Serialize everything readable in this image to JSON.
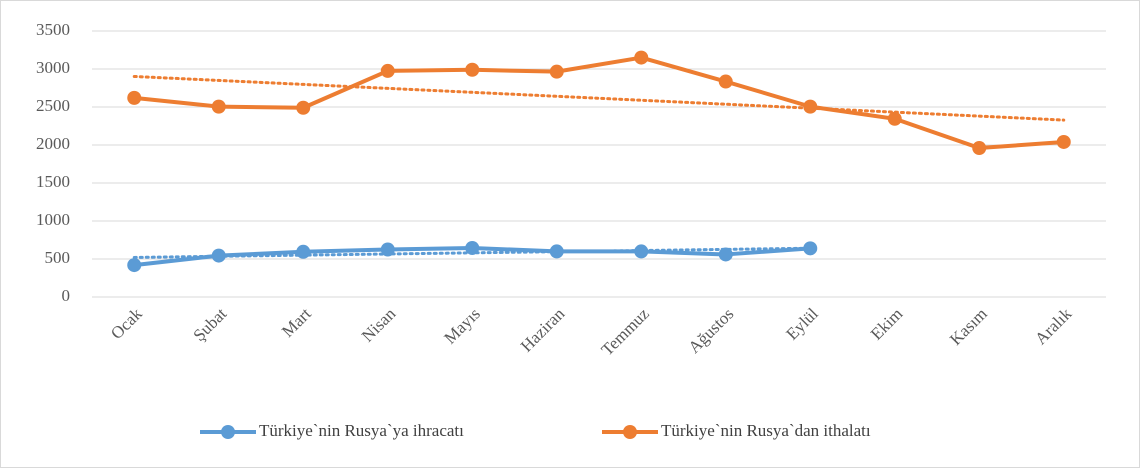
{
  "chart_data": {
    "type": "line",
    "categories": [
      "Ocak",
      "Şubat",
      "Mart",
      "Nisan",
      "Mayıs",
      "Haziran",
      "Temmuz",
      "Ağustos",
      "Eylül",
      "Ekim",
      "Kasım",
      "Aralık"
    ],
    "series": [
      {
        "name": "Türkiye`nin Rusya`ya ihracatı",
        "color": "#5b9bd5",
        "trendline": "linear",
        "values": [
          420,
          545,
          595,
          625,
          645,
          600,
          600,
          560,
          640,
          null,
          null,
          null
        ]
      },
      {
        "name": "Türkiye`nin Rusya`dan ithalatı",
        "color": "#ed7d31",
        "trendline": "linear",
        "values": [
          2620,
          2505,
          2490,
          2975,
          2990,
          2965,
          3150,
          2835,
          2505,
          2345,
          1960,
          2040
        ]
      }
    ],
    "ylim": [
      0,
      3500
    ],
    "yticks": [
      0,
      500,
      1000,
      1500,
      2000,
      2500,
      3000,
      3500
    ],
    "grid": true,
    "legend": "bottom"
  }
}
